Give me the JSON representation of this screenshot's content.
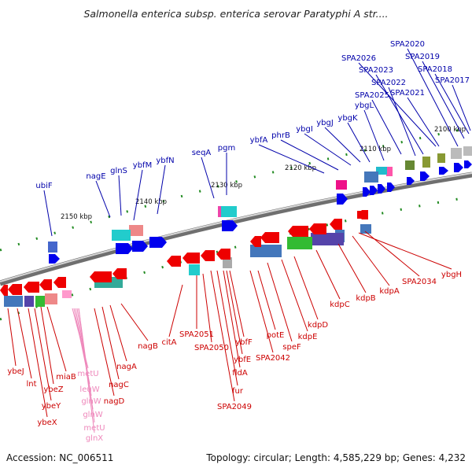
{
  "title": "Salmonella enterica subsp. enterica serovar Paratyphi A str....",
  "footer": {
    "accession": "Accession: NC_006511",
    "summary": "Topology: circular; Length: 4,585,229 bp; Genes: 4,232"
  },
  "colors": {
    "forward_gene": "#0000ee",
    "reverse_gene": "#ee0000",
    "rna_gene": "#ff99cc",
    "backbone": "#888888",
    "forward_label": "#0000aa",
    "reverse_label": "#cc0000",
    "rna_label": "#ee88bb"
  },
  "ticks": [
    "2100 kbp",
    "2110 kbp",
    "2120 kbp",
    "2130 kbp",
    "2140 kbp",
    "2150 kbp"
  ],
  "forward_labels": [
    "SPA2020",
    "SPA2019",
    "SPA2026",
    "SPA2018",
    "SPA2023",
    "SPA2017",
    "SPA2022",
    "SPA2025",
    "SPA2021",
    "ybgL",
    "ybgK",
    "ybgJ",
    "ybgI",
    "phrB",
    "ybfA",
    "seqA",
    "pgm",
    "ybfN",
    "ybfM",
    "nagE",
    "glnS",
    "ubiF"
  ],
  "reverse_labels": [
    "ybgH",
    "SPA2034",
    "kdpA",
    "kdpB",
    "kdpC",
    "kdpD",
    "kdpE",
    "speF",
    "potE",
    "SPA2042",
    "ybfF",
    "ybfE",
    "fldA",
    "fur",
    "SPA2049",
    "SPA2050",
    "SPA2051",
    "citA",
    "nagB",
    "nagA",
    "nagC",
    "nagD",
    "miaB",
    "ybeZ",
    "ybeY",
    "ybeX",
    "lnt",
    "ybeJ"
  ],
  "rna_labels": [
    "metU",
    "leuW",
    "glnW",
    "glnW",
    "metU",
    "glnX"
  ]
}
